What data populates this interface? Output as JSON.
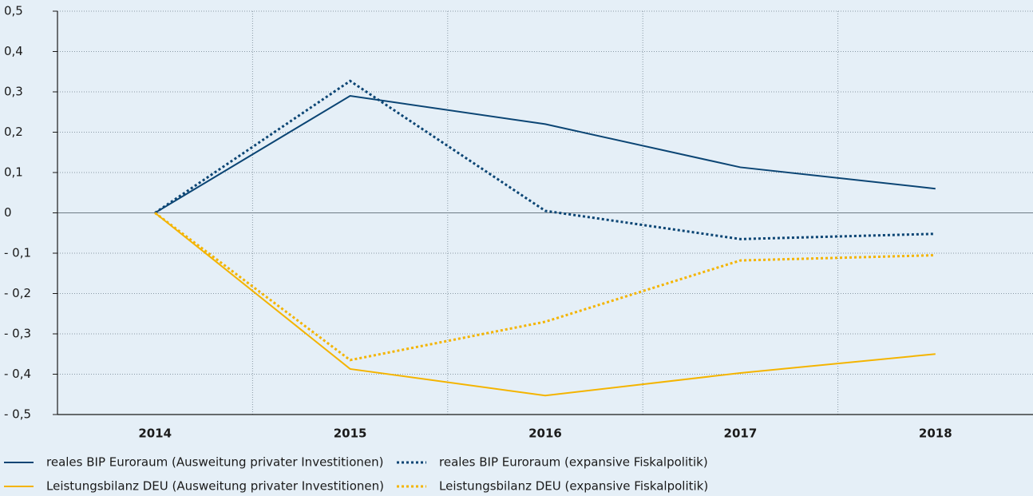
{
  "chart_data": {
    "type": "line",
    "categories": [
      "2014",
      "2015",
      "2016",
      "2017",
      "2018"
    ],
    "series": [
      {
        "name": "reales BIP Euroraum (Ausweitung privater Investitionen)",
        "color": "#0b4574",
        "style": "solid",
        "values": [
          0,
          0.29,
          0.22,
          0.113,
          0.06
        ]
      },
      {
        "name": "reales BIP Euroraum (expansive Fiskalpolitik)",
        "color": "#0b4574",
        "style": "dotted",
        "values": [
          0,
          0.327,
          0.005,
          -0.065,
          -0.052
        ]
      },
      {
        "name": "Leistungsbilanz DEU (Ausweitung privater Investitionen)",
        "color": "#f4b400",
        "style": "solid",
        "values": [
          0,
          -0.387,
          -0.453,
          -0.397,
          -0.35
        ]
      },
      {
        "name": "Leistungsbilanz DEU (expansive Fiskalpolitik)",
        "color": "#f4b400",
        "style": "dotted",
        "values": [
          0,
          -0.365,
          -0.27,
          -0.118,
          -0.105
        ]
      }
    ],
    "ylim": [
      -0.5,
      0.5
    ],
    "yticks": [
      {
        "value": 0.5,
        "label": "0,5"
      },
      {
        "value": 0.4,
        "label": "0,4"
      },
      {
        "value": 0.3,
        "label": "0,3"
      },
      {
        "value": 0.2,
        "label": "0,2"
      },
      {
        "value": 0.1,
        "label": "0,1"
      },
      0,
      {
        "value": -0.1,
        "label": "- 0,1"
      },
      {
        "value": -0.2,
        "label": "- 0,2"
      },
      {
        "value": -0.3,
        "label": "- 0,3"
      },
      {
        "value": -0.4,
        "label": "- 0,4"
      },
      {
        "value": -0.5,
        "label": "- 0,5"
      }
    ],
    "grid": true
  }
}
